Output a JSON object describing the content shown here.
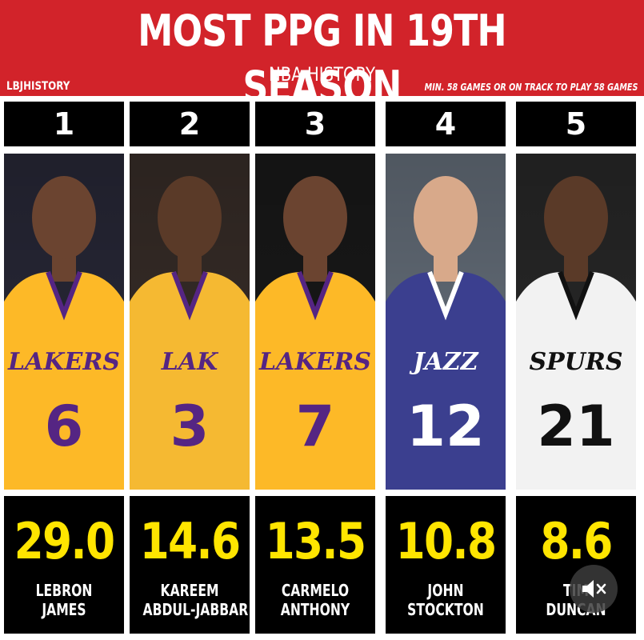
{
  "header": {
    "title": "MOST PPG IN 19TH SEASON",
    "subtitle": "NBA HISTORY",
    "brand": "LBJHISTORY",
    "note": "MIN. 58 GAMES OR ON TRACK TO PLAY 58 GAMES"
  },
  "players": [
    {
      "rank": "1",
      "ppg": "29.0",
      "first": "LEBRON",
      "last": "JAMES",
      "jersey_number": "6",
      "team_text": "LAKERS",
      "jersey_color": "#fdb927",
      "trim_color": "#552583",
      "bg_color": "#2a2a3a",
      "skin": "#6b4430"
    },
    {
      "rank": "2",
      "ppg": "14.6",
      "first": "KAREEM",
      "last": "ABDUL-JABBAR",
      "jersey_number": "3",
      "team_text": "LAK",
      "jersey_color": "#f5b932",
      "trim_color": "#552583",
      "bg_color": "#3a2f2a",
      "skin": "#5a3a28"
    },
    {
      "rank": "3",
      "ppg": "13.5",
      "first": "CARMELO",
      "last": "ANTHONY",
      "jersey_number": "7",
      "team_text": "LAKERS",
      "jersey_color": "#fdb927",
      "trim_color": "#552583",
      "bg_color": "#1a1a1a",
      "skin": "#6b4430"
    },
    {
      "rank": "4",
      "ppg": "10.8",
      "first": "JOHN",
      "last": "STOCKTON",
      "jersey_number": "12",
      "team_text": "JAZZ",
      "jersey_color": "#3b3f8f",
      "trim_color": "#ffffff",
      "bg_color": "#6a7480",
      "skin": "#d8a98a"
    },
    {
      "rank": "5",
      "ppg": "8.6",
      "first": "TIM",
      "last": "DUNCAN",
      "jersey_number": "21",
      "team_text": "SPURS",
      "jersey_color": "#f2f2f2",
      "trim_color": "#111111",
      "bg_color": "#2a2a2a",
      "skin": "#5a3a28"
    }
  ],
  "colors": {
    "header_red": "#d2232a",
    "ppg_yellow": "#ffe500",
    "box_black": "#000000"
  },
  "overlay": {
    "icon": "mute-icon"
  }
}
